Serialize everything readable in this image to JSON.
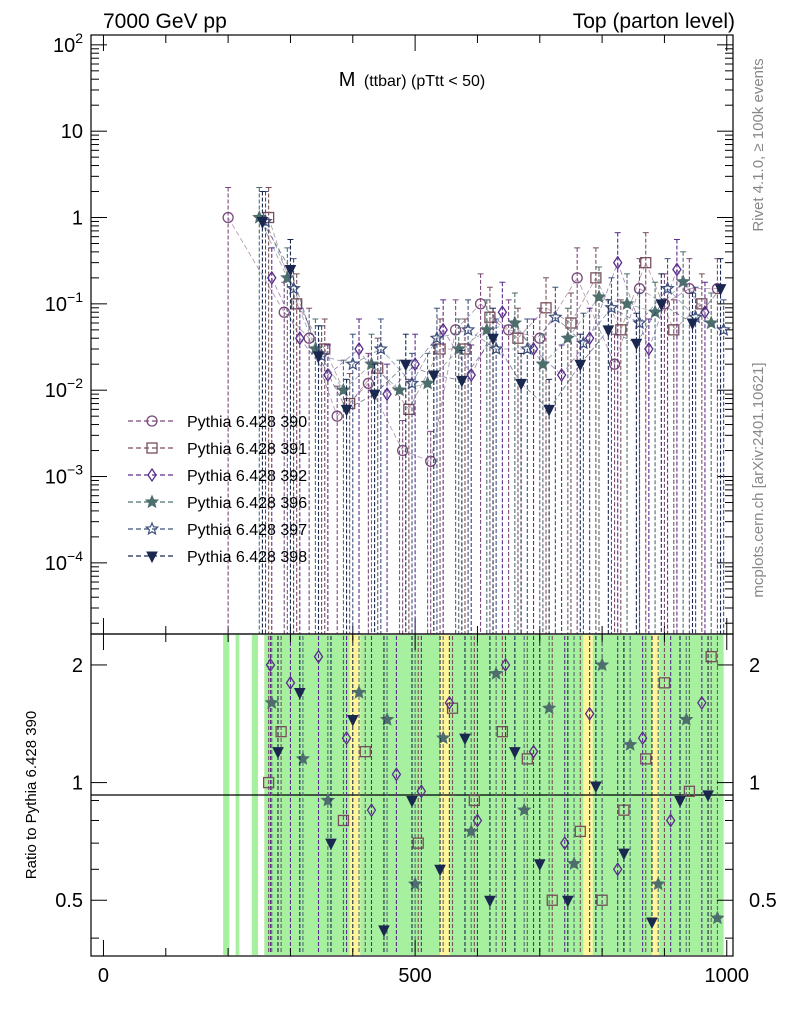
{
  "header": {
    "left": "7000 GeV pp",
    "right": "Top (parton level)"
  },
  "side_text": {
    "rivet": "Rivet 4.1.0, ≥ 100k events",
    "mcplots": "mcplots.cern.ch [arXiv:2401.10621]"
  },
  "chart_data": [
    {
      "type": "scatter",
      "title": "M (ttbar) (pTtt < 50)",
      "title_main": "M",
      "title_sub": "(ttbar) (pTtt < 50)",
      "xlim": [
        -20,
        1010
      ],
      "ylim": [
        1.5e-05,
        130
      ],
      "yscale": "log",
      "yticks": [
        {
          "value": 0.0001,
          "base": "10",
          "exp": "−4"
        },
        {
          "value": 0.001,
          "base": "10",
          "exp": "−3"
        },
        {
          "value": 0.01,
          "base": "10",
          "exp": "−2"
        },
        {
          "value": 0.1,
          "base": "10",
          "exp": "−1"
        },
        {
          "value": 1,
          "base": "1",
          "exp": ""
        },
        {
          "value": 10,
          "base": "10",
          "exp": ""
        },
        {
          "value": 100,
          "base": "10",
          "exp": "2"
        }
      ],
      "legend_position": "left",
      "series": [
        {
          "name": "Pythia 6.428 390",
          "color": "#7a4a7a",
          "marker": "circle-open",
          "x": [
            200,
            290,
            330,
            375,
            425,
            480,
            525,
            565,
            605,
            650,
            700,
            760,
            820,
            860,
            900,
            940,
            985
          ],
          "y": [
            1.0,
            0.08,
            0.04,
            0.005,
            0.012,
            0.002,
            0.0015,
            0.05,
            0.1,
            0.05,
            0.04,
            0.2,
            0.02,
            0.15,
            0.1,
            0.15,
            0.15
          ]
        },
        {
          "name": "Pythia 6.428 391",
          "color": "#7a4f5a",
          "marker": "square-open",
          "x": [
            265,
            310,
            355,
            395,
            440,
            490,
            540,
            580,
            620,
            665,
            710,
            750,
            790,
            830,
            870,
            915,
            960
          ],
          "y": [
            1.0,
            0.1,
            0.03,
            0.007,
            0.018,
            0.006,
            0.03,
            0.03,
            0.07,
            0.04,
            0.09,
            0.06,
            0.2,
            0.05,
            0.3,
            0.05,
            0.1
          ]
        },
        {
          "name": "Pythia 6.428 392",
          "color": "#5a2d8c",
          "marker": "diamond-open",
          "x": [
            270,
            315,
            360,
            410,
            455,
            500,
            545,
            590,
            640,
            690,
            735,
            780,
            825,
            875,
            920,
            965
          ],
          "y": [
            0.2,
            0.04,
            0.015,
            0.03,
            0.009,
            0.02,
            0.05,
            0.015,
            0.08,
            0.03,
            0.015,
            0.04,
            0.3,
            0.03,
            0.25,
            0.08
          ]
        },
        {
          "name": "Pythia 6.428 396",
          "color": "#4e6e6e",
          "marker": "star-filled",
          "x": [
            250,
            295,
            340,
            385,
            430,
            475,
            520,
            570,
            615,
            660,
            705,
            745,
            795,
            840,
            885,
            930,
            975
          ],
          "y": [
            1.0,
            0.2,
            0.03,
            0.01,
            0.02,
            0.01,
            0.012,
            0.03,
            0.05,
            0.06,
            0.02,
            0.04,
            0.12,
            0.1,
            0.08,
            0.18,
            0.06
          ]
        },
        {
          "name": "Pythia 6.428 397",
          "color": "#3d4f7c",
          "marker": "star-open",
          "x": [
            260,
            305,
            350,
            400,
            445,
            495,
            535,
            585,
            630,
            680,
            725,
            770,
            815,
            860,
            905,
            950,
            995
          ],
          "y": [
            0.9,
            0.15,
            0.025,
            0.02,
            0.03,
            0.012,
            0.04,
            0.05,
            0.03,
            0.03,
            0.07,
            0.035,
            0.09,
            0.06,
            0.15,
            0.07,
            0.05
          ]
        },
        {
          "name": "Pythia 6.428 398",
          "color": "#1a2850",
          "marker": "triangle-down-filled",
          "x": [
            255,
            300,
            345,
            390,
            435,
            485,
            530,
            575,
            625,
            670,
            715,
            765,
            810,
            855,
            895,
            945,
            990
          ],
          "y": [
            0.9,
            0.25,
            0.025,
            0.006,
            0.009,
            0.02,
            0.015,
            0.013,
            0.04,
            0.012,
            0.006,
            0.02,
            0.05,
            0.035,
            0.1,
            0.06,
            0.15
          ]
        }
      ]
    },
    {
      "type": "scatter",
      "ylabel": "Ratio to Pythia 6.428 390",
      "xlim": [
        -20,
        1010
      ],
      "ylim": [
        0.36,
        2.4
      ],
      "yscale": "log",
      "xticks": [
        0,
        500,
        1000
      ],
      "yticks": [
        0.5,
        1,
        2
      ],
      "reference_line": 1,
      "bands": [
        {
          "x0": 192,
          "x1": 202,
          "level": "green"
        },
        {
          "x0": 212,
          "x1": 218,
          "level": "green"
        },
        {
          "x0": 238,
          "x1": 248,
          "level": "green"
        },
        {
          "x0": 258,
          "x1": 395,
          "level": "green"
        },
        {
          "x0": 395,
          "x1": 412,
          "level": "yellow"
        },
        {
          "x0": 412,
          "x1": 540,
          "level": "green"
        },
        {
          "x0": 540,
          "x1": 556,
          "level": "yellow"
        },
        {
          "x0": 556,
          "x1": 770,
          "level": "green"
        },
        {
          "x0": 770,
          "x1": 785,
          "level": "yellow"
        },
        {
          "x0": 785,
          "x1": 880,
          "level": "green"
        },
        {
          "x0": 880,
          "x1": 892,
          "level": "yellow"
        },
        {
          "x0": 892,
          "x1": 995,
          "level": "green"
        }
      ],
      "series": [
        {
          "name": "Pythia 6.428 391",
          "marker": "square-open",
          "color": "#7a4f5a",
          "x": [
            265,
            285,
            385,
            420,
            505,
            560,
            595,
            640,
            680,
            720,
            765,
            800,
            835,
            870,
            900,
            940,
            975
          ],
          "y": [
            1.0,
            1.35,
            0.8,
            1.2,
            0.7,
            1.55,
            0.9,
            1.35,
            1.15,
            0.5,
            0.75,
            0.5,
            0.85,
            1.15,
            1.8,
            0.95,
            2.1
          ]
        },
        {
          "name": "Pythia 6.428 392",
          "marker": "diamond-open",
          "color": "#5a2d8c",
          "x": [
            268,
            300,
            345,
            390,
            430,
            470,
            510,
            555,
            600,
            645,
            690,
            740,
            780,
            825,
            865,
            910,
            960
          ],
          "y": [
            2.0,
            1.8,
            2.1,
            1.3,
            0.85,
            1.05,
            0.95,
            1.6,
            0.8,
            2.0,
            1.2,
            0.7,
            1.5,
            0.6,
            1.3,
            0.8,
            1.6
          ]
        },
        {
          "name": "Pythia 6.428 396",
          "marker": "star-filled",
          "color": "#4e6e6e",
          "x": [
            270,
            320,
            360,
            410,
            455,
            500,
            545,
            590,
            630,
            675,
            715,
            755,
            800,
            845,
            890,
            935,
            985
          ],
          "y": [
            1.6,
            1.15,
            0.9,
            1.7,
            1.45,
            0.55,
            1.3,
            0.75,
            1.9,
            0.85,
            1.55,
            0.62,
            2.0,
            1.25,
            0.55,
            1.45,
            0.45
          ]
        },
        {
          "name": "Pythia 6.428 398",
          "marker": "triangle-down-filled",
          "color": "#1a2850",
          "x": [
            280,
            315,
            365,
            400,
            450,
            495,
            540,
            580,
            620,
            660,
            700,
            745,
            790,
            835,
            880,
            925,
            970
          ],
          "y": [
            1.2,
            1.7,
            0.7,
            1.45,
            0.42,
            0.9,
            0.6,
            1.3,
            0.5,
            1.2,
            0.62,
            0.5,
            0.98,
            0.66,
            0.44,
            0.9,
            0.93
          ]
        }
      ]
    }
  ]
}
